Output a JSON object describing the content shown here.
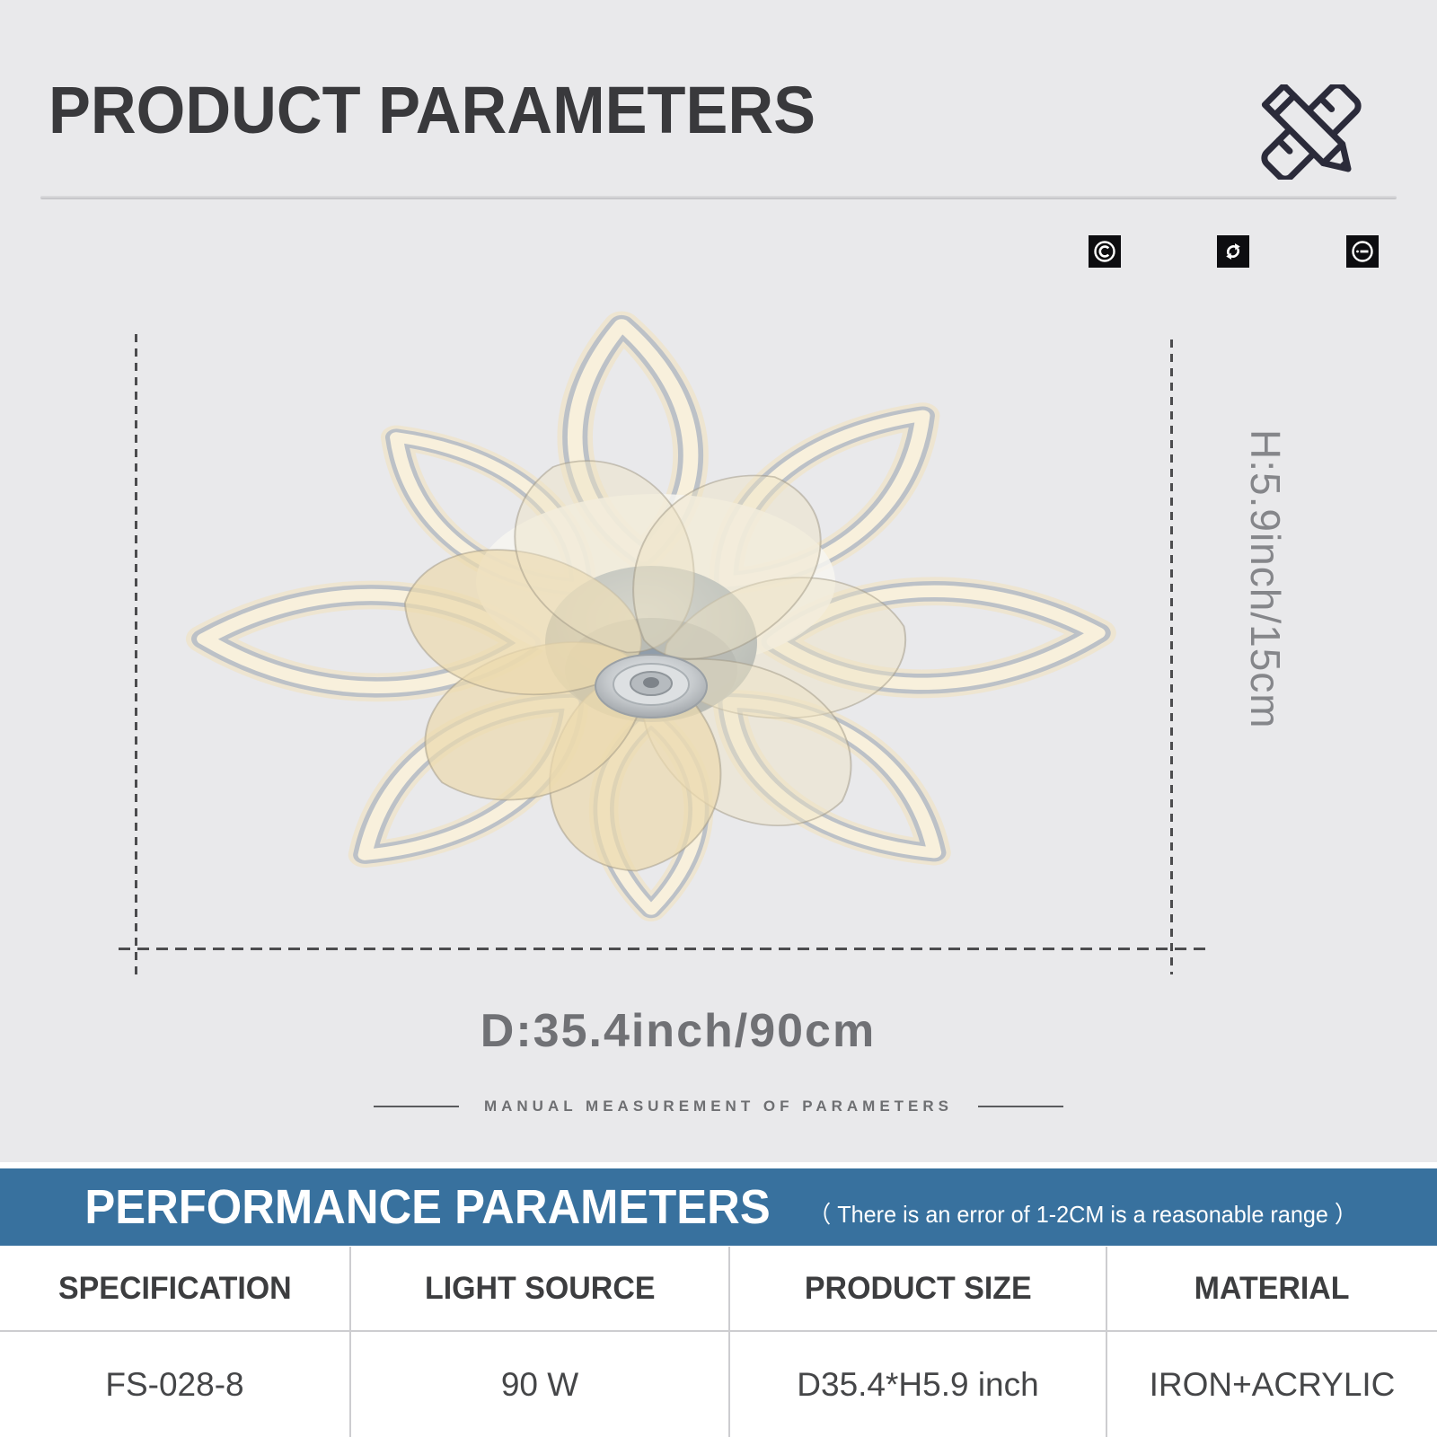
{
  "page": {
    "background": "#e9e9eb",
    "accent_blue": "#38719e",
    "warm_light": "#f8efda"
  },
  "header": {
    "title": "PRODUCT PARAMETERS",
    "icon": "pencil-ruler-icon"
  },
  "badges": [
    {
      "icon": "copyright-icon"
    },
    {
      "icon": "sync-arrows-icon"
    },
    {
      "icon": "circled-minus-icon"
    }
  ],
  "diagram": {
    "product": "flower-shaped LED ceiling fan light, 8 luminous petals, 7 clear fan blades",
    "height_label": "H:5.9inch/15cm",
    "diameter_label": "D:35.4inch/90cm",
    "note": "MANUAL MEASUREMENT OF PARAMETERS"
  },
  "performance": {
    "title": "PERFORMANCE PARAMETERS",
    "note": "（ There is an error of 1-2CM is a reasonable range ）",
    "table": {
      "headers": [
        "SPECIFICATION",
        "LIGHT SOURCE",
        "PRODUCT SIZE",
        "MATERIAL"
      ],
      "row": [
        "FS-028-8",
        "90 W",
        "D35.4*H5.9 inch",
        "IRON+ACRYLIC"
      ]
    }
  }
}
